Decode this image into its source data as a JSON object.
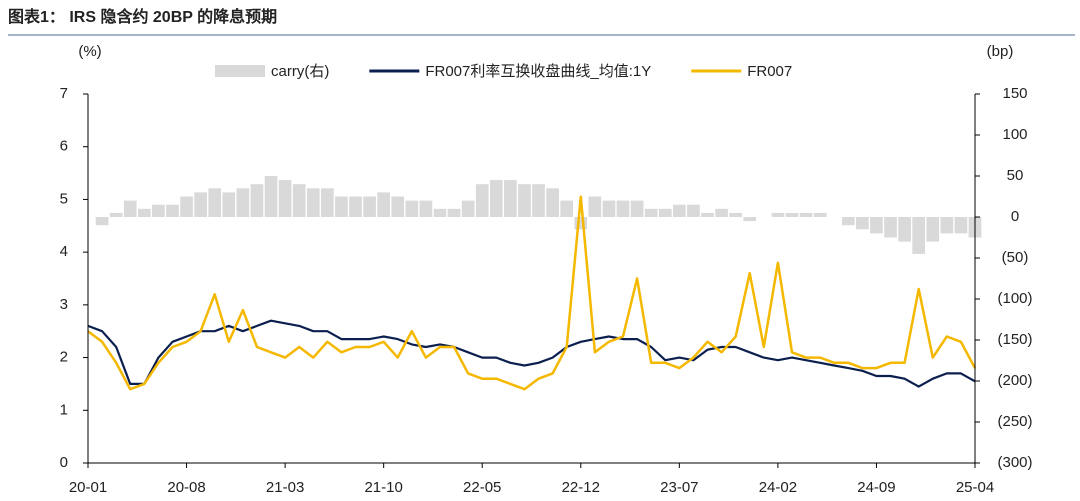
{
  "chart_data": {
    "type": "bar-line",
    "title": "图表1： IRS 隐含约 20BP 的降息预期",
    "ylabel": "(%)",
    "y2label": "(bp)",
    "categories": [
      "20-01",
      null,
      null,
      null,
      null,
      null,
      null,
      "20-08",
      null,
      null,
      null,
      null,
      null,
      null,
      "21-03",
      null,
      null,
      null,
      null,
      null,
      null,
      "21-10",
      null,
      null,
      null,
      null,
      null,
      null,
      "22-05",
      null,
      null,
      null,
      null,
      null,
      null,
      "22-12",
      null,
      null,
      null,
      null,
      null,
      null,
      "23-07",
      null,
      null,
      null,
      null,
      null,
      null,
      "24-02",
      null,
      null,
      null,
      null,
      null,
      null,
      "24-09",
      null,
      null,
      null,
      null,
      null,
      null,
      "25-04"
    ],
    "series": [
      {
        "name": "carry(右)",
        "type": "bar",
        "axis": "y2",
        "color": "#d9d9d9",
        "values": [
          0,
          -10,
          5,
          20,
          10,
          15,
          15,
          25,
          30,
          35,
          30,
          35,
          40,
          50,
          45,
          40,
          35,
          35,
          25,
          25,
          25,
          30,
          25,
          20,
          20,
          10,
          10,
          20,
          40,
          45,
          45,
          40,
          40,
          35,
          20,
          -15,
          25,
          20,
          20,
          20,
          10,
          10,
          15,
          15,
          5,
          10,
          5,
          -5,
          0,
          5,
          5,
          5,
          5,
          0,
          -10,
          -15,
          -20,
          -25,
          -30,
          -45,
          -30,
          -20,
          -20,
          -25
        ]
      },
      {
        "name": "FR007利率互换收盘曲线_均值:1Y",
        "type": "line",
        "color": "#0b1f4f",
        "values": [
          2.6,
          2.5,
          2.2,
          1.5,
          1.5,
          2.0,
          2.3,
          2.4,
          2.5,
          2.5,
          2.6,
          2.5,
          2.6,
          2.7,
          2.65,
          2.6,
          2.5,
          2.5,
          2.35,
          2.35,
          2.35,
          2.4,
          2.35,
          2.25,
          2.2,
          2.25,
          2.2,
          2.1,
          2.0,
          2.0,
          1.9,
          1.85,
          1.9,
          2.0,
          2.2,
          2.3,
          2.35,
          2.4,
          2.35,
          2.35,
          2.2,
          1.95,
          2.0,
          1.95,
          2.15,
          2.2,
          2.2,
          2.1,
          2.0,
          1.95,
          2.0,
          1.95,
          1.9,
          1.85,
          1.8,
          1.75,
          1.65,
          1.65,
          1.6,
          1.45,
          1.6,
          1.7,
          1.7,
          1.55
        ]
      },
      {
        "name": "FR007",
        "type": "line",
        "color": "#f5b800",
        "values": [
          2.5,
          2.3,
          1.9,
          1.4,
          1.5,
          1.9,
          2.2,
          2.3,
          2.5,
          3.2,
          2.3,
          2.9,
          2.2,
          2.1,
          2.0,
          2.2,
          2.0,
          2.3,
          2.1,
          2.2,
          2.2,
          2.3,
          2.0,
          2.5,
          2.0,
          2.2,
          2.2,
          1.7,
          1.6,
          1.6,
          1.5,
          1.4,
          1.6,
          1.7,
          2.2,
          5.05,
          2.1,
          2.3,
          2.4,
          3.5,
          1.9,
          1.9,
          1.8,
          2.0,
          2.3,
          2.1,
          2.4,
          3.6,
          2.2,
          3.8,
          2.1,
          2.0,
          2.0,
          1.9,
          1.9,
          1.8,
          1.8,
          1.9,
          1.9,
          3.3,
          2.0,
          2.4,
          2.3,
          1.8
        ]
      }
    ],
    "ylim": [
      0,
      7
    ],
    "yticks": [
      0,
      1,
      2,
      3,
      4,
      5,
      6,
      7
    ],
    "y2lim": [
      -300,
      150
    ],
    "y2ticks": [
      {
        "value": -300,
        "label": "(300)"
      },
      {
        "value": -250,
        "label": "(250)"
      },
      {
        "value": -200,
        "label": "(200)"
      },
      {
        "value": -150,
        "label": "(150)"
      },
      {
        "value": -100,
        "label": "(100)"
      },
      {
        "value": -50,
        "label": "(50)"
      },
      0,
      50,
      100,
      150
    ],
    "grid": false
  }
}
